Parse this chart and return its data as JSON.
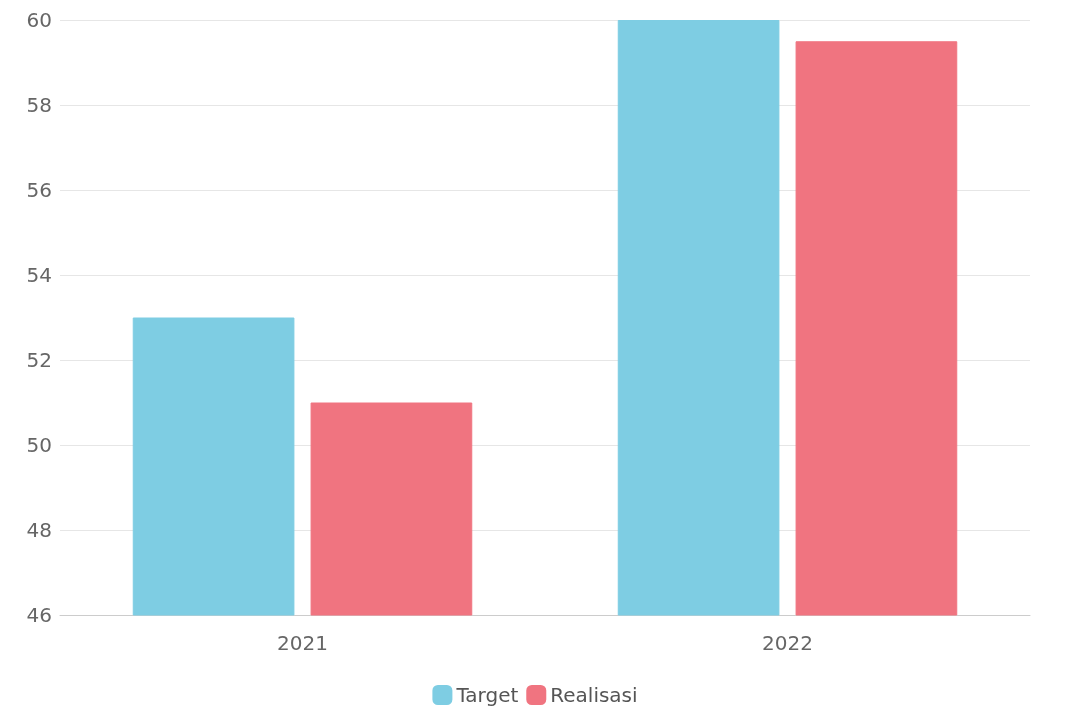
{
  "chart_data": {
    "type": "bar",
    "categories": [
      "2021",
      "2022"
    ],
    "series": [
      {
        "name": "Target",
        "color": "#7ecde3",
        "values": [
          53,
          60
        ]
      },
      {
        "name": "Realisasi",
        "color": "#f07480",
        "values": [
          51,
          59.5
        ]
      }
    ],
    "ylim": [
      46,
      60
    ],
    "yticks": [
      46,
      48,
      50,
      52,
      54,
      56,
      58,
      60
    ],
    "grid": "y",
    "legend": "bottom"
  }
}
